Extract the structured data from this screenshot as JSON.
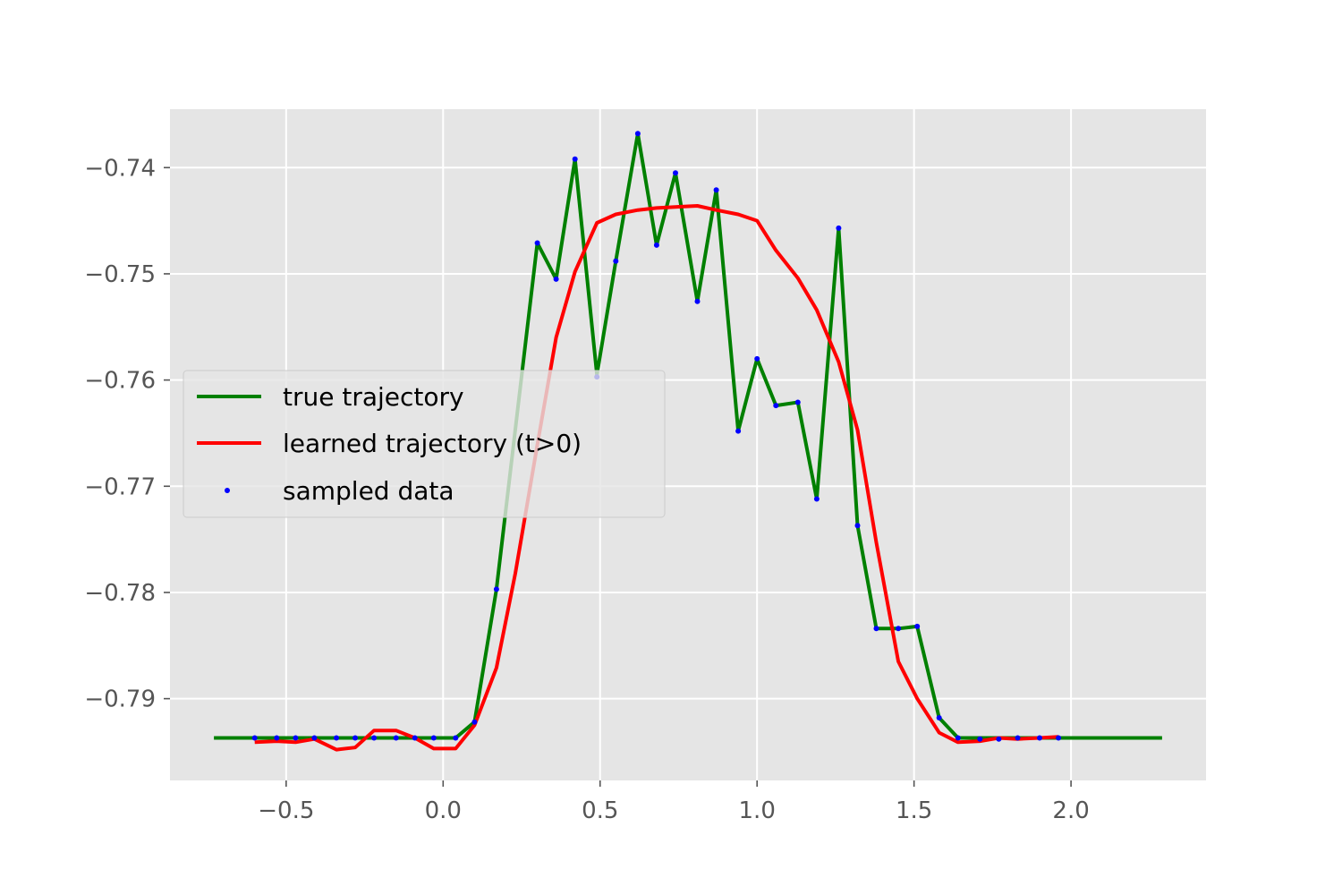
{
  "chart_data": {
    "type": "line",
    "title": "",
    "xlabel": "",
    "ylabel": "",
    "xlim": [
      -0.87,
      2.43
    ],
    "ylim": [
      -0.7977,
      -0.7345
    ],
    "grid": true,
    "style": "ggplot",
    "legend_position": "center-left",
    "x_ticks": [
      -0.5,
      0.0,
      0.5,
      1.0,
      1.5,
      2.0
    ],
    "x_tick_labels": [
      "−0.5",
      "0.0",
      "0.5",
      "1.0",
      "1.5",
      "2.0"
    ],
    "y_ticks": [
      -0.79,
      -0.78,
      -0.77,
      -0.76,
      -0.75,
      -0.74
    ],
    "y_tick_labels": [
      "−0.79",
      "−0.78",
      "−0.77",
      "−0.76",
      "−0.75",
      "−0.74"
    ],
    "series": [
      {
        "name": "true trajectory",
        "kind": "line",
        "color": "#008000",
        "points": [
          [
            -0.73,
            -0.7937
          ],
          [
            0.04,
            -0.7937
          ],
          [
            0.1,
            -0.7922
          ],
          [
            0.17,
            -0.7797
          ],
          [
            0.3,
            -0.7471
          ],
          [
            0.36,
            -0.7505
          ],
          [
            0.42,
            -0.7392
          ],
          [
            0.49,
            -0.7595
          ],
          [
            0.55,
            -0.7488
          ],
          [
            0.62,
            -0.7368
          ],
          [
            0.68,
            -0.7473
          ],
          [
            0.74,
            -0.7405
          ],
          [
            0.81,
            -0.7526
          ],
          [
            0.87,
            -0.7421
          ],
          [
            0.94,
            -0.7648
          ],
          [
            1.0,
            -0.758
          ],
          [
            1.06,
            -0.7624
          ],
          [
            1.13,
            -0.7621
          ],
          [
            1.19,
            -0.7712
          ],
          [
            1.26,
            -0.7457
          ],
          [
            1.32,
            -0.7737
          ],
          [
            1.38,
            -0.7834
          ],
          [
            1.45,
            -0.7834
          ],
          [
            1.51,
            -0.7832
          ],
          [
            1.58,
            -0.7918
          ],
          [
            1.64,
            -0.7937
          ],
          [
            2.29,
            -0.7937
          ]
        ]
      },
      {
        "name": "learned trajectory (t>0)",
        "kind": "line",
        "color": "#ff0000",
        "points": [
          [
            -0.6,
            -0.7941
          ],
          [
            -0.53,
            -0.794
          ],
          [
            -0.47,
            -0.7941
          ],
          [
            -0.41,
            -0.7938
          ],
          [
            -0.34,
            -0.7948
          ],
          [
            -0.28,
            -0.7946
          ],
          [
            -0.22,
            -0.793
          ],
          [
            -0.15,
            -0.793
          ],
          [
            -0.09,
            -0.7937
          ],
          [
            -0.03,
            -0.7947
          ],
          [
            0.04,
            -0.7947
          ],
          [
            0.1,
            -0.7925
          ],
          [
            0.17,
            -0.7871
          ],
          [
            0.23,
            -0.7782
          ],
          [
            0.3,
            -0.7661
          ],
          [
            0.36,
            -0.756
          ],
          [
            0.42,
            -0.7498
          ],
          [
            0.49,
            -0.7452
          ],
          [
            0.55,
            -0.7444
          ],
          [
            0.62,
            -0.744
          ],
          [
            0.68,
            -0.7438
          ],
          [
            0.74,
            -0.7437
          ],
          [
            0.81,
            -0.7436
          ],
          [
            0.87,
            -0.744
          ],
          [
            0.94,
            -0.7444
          ],
          [
            1.0,
            -0.745
          ],
          [
            1.06,
            -0.7478
          ],
          [
            1.13,
            -0.7504
          ],
          [
            1.19,
            -0.7534
          ],
          [
            1.26,
            -0.7583
          ],
          [
            1.32,
            -0.7647
          ],
          [
            1.38,
            -0.7753
          ],
          [
            1.45,
            -0.7865
          ],
          [
            1.51,
            -0.79
          ],
          [
            1.58,
            -0.7932
          ],
          [
            1.64,
            -0.7941
          ],
          [
            1.71,
            -0.794
          ],
          [
            1.77,
            -0.7937
          ],
          [
            1.83,
            -0.7938
          ],
          [
            1.9,
            -0.7937
          ],
          [
            1.96,
            -0.7936
          ]
        ]
      },
      {
        "name": "sampled data",
        "kind": "scatter",
        "color": "#0000ff",
        "points": [
          [
            -0.6,
            -0.7937
          ],
          [
            -0.53,
            -0.7937
          ],
          [
            -0.47,
            -0.7937
          ],
          [
            -0.41,
            -0.7937
          ],
          [
            -0.34,
            -0.7937
          ],
          [
            -0.28,
            -0.7937
          ],
          [
            -0.22,
            -0.7937
          ],
          [
            -0.15,
            -0.7937
          ],
          [
            -0.09,
            -0.7937
          ],
          [
            -0.03,
            -0.7937
          ],
          [
            0.04,
            -0.7937
          ],
          [
            0.1,
            -0.7922
          ],
          [
            0.17,
            -0.7797
          ],
          [
            0.3,
            -0.7471
          ],
          [
            0.36,
            -0.7505
          ],
          [
            0.42,
            -0.7392
          ],
          [
            0.49,
            -0.7597
          ],
          [
            0.55,
            -0.7488
          ],
          [
            0.62,
            -0.7368
          ],
          [
            0.68,
            -0.7473
          ],
          [
            0.74,
            -0.7405
          ],
          [
            0.81,
            -0.7526
          ],
          [
            0.87,
            -0.7421
          ],
          [
            0.94,
            -0.7648
          ],
          [
            1.0,
            -0.758
          ],
          [
            1.06,
            -0.7624
          ],
          [
            1.13,
            -0.7621
          ],
          [
            1.19,
            -0.7712
          ],
          [
            1.26,
            -0.7457
          ],
          [
            1.32,
            -0.7737
          ],
          [
            1.38,
            -0.7834
          ],
          [
            1.45,
            -0.7834
          ],
          [
            1.51,
            -0.7832
          ],
          [
            1.58,
            -0.7918
          ],
          [
            1.64,
            -0.7937
          ],
          [
            1.71,
            -0.7938
          ],
          [
            1.77,
            -0.7938
          ],
          [
            1.83,
            -0.7937
          ],
          [
            1.9,
            -0.7937
          ],
          [
            1.96,
            -0.7937
          ]
        ]
      }
    ]
  }
}
